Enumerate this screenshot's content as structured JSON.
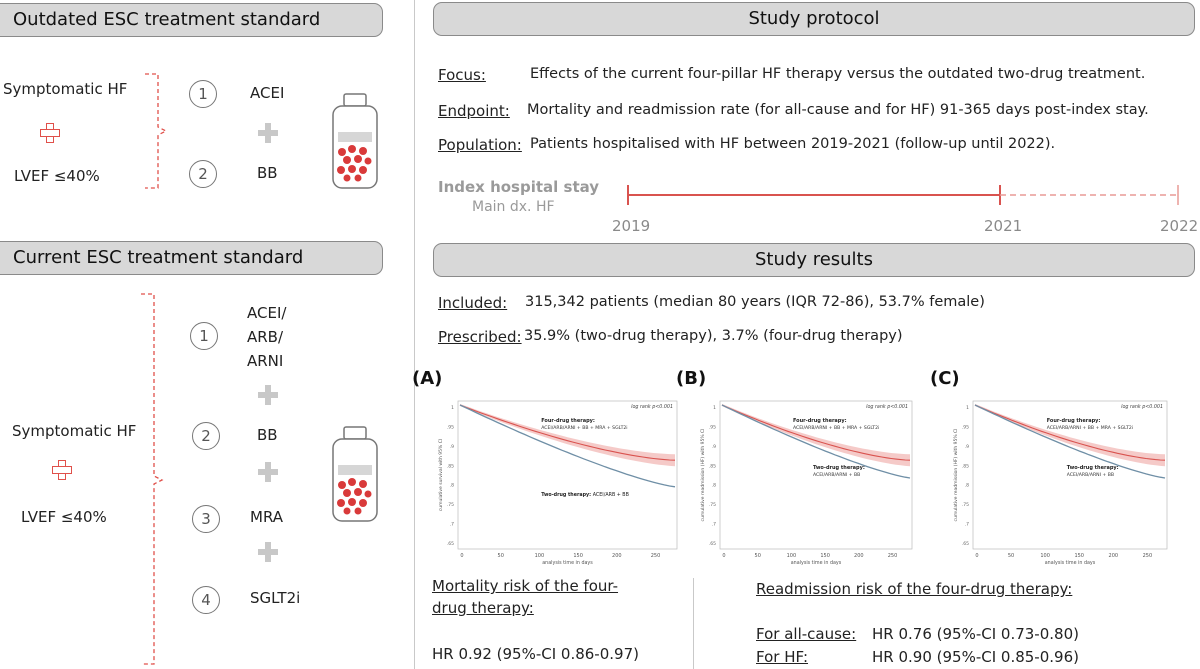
{
  "left": {
    "outdated_header": "Outdated ESC treatment standard",
    "outdated_cond1": "Symptomatic HF",
    "outdated_cond2": "LVEF ≤40%",
    "outdated_drugs": [
      {
        "num": "1",
        "name": "ACEI"
      },
      {
        "num": "2",
        "name": "BB"
      }
    ],
    "current_header": "Current ESC treatment standard",
    "current_cond1": "Symptomatic HF",
    "current_cond2": "LVEF ≤40%",
    "current_drugs": [
      {
        "num": "1",
        "name_lines": [
          "ACEI/",
          "ARB/",
          "ARNI"
        ]
      },
      {
        "num": "2",
        "name": "BB"
      },
      {
        "num": "3",
        "name": "MRA"
      },
      {
        "num": "4",
        "name": "SGLT2i"
      }
    ]
  },
  "protocol": {
    "header": "Study protocol",
    "focus_label": "Focus:",
    "focus_text": "Effects of the current four-pillar HF therapy versus the outdated two-drug treatment.",
    "endpoint_label": "Endpoint:",
    "endpoint_text": "Mortality and readmission rate (for all-cause and for HF) 91-365 days post-index stay.",
    "population_label": "Population:",
    "population_text": "Patients hospitalised with HF between 2019-2021 (follow-up until 2022).",
    "timeline_title": "Index hospital stay",
    "timeline_sub": "Main dx. HF",
    "years": [
      "2019",
      "2021",
      "2022"
    ]
  },
  "results": {
    "header": "Study results",
    "included_label": "Included:",
    "included_text": "315,342 patients (median 80 years (IQR 72-86), 53.7% female)",
    "prescribed_label": "Prescribed:",
    "prescribed_text": "35.9% (two-drug therapy), 3.7% (four-drug therapy)",
    "panels": [
      {
        "label": "(A)",
        "pval": "log rank p<0.001",
        "ylabel": "cumulative survival with 95% CI",
        "four_title": "Four-drug therapy:",
        "four_sub": "ACEI/ARB/ARNI + BB + MRA + SGLT2i",
        "two_title": "Two-drug therapy:",
        "two_sub": "ACEI/ARB + BB",
        "two_inline": true,
        "yticks": [
          "1",
          ".95",
          ".9",
          ".85",
          ".8",
          ".75",
          ".7",
          ".65"
        ],
        "xticks": [
          "0",
          "50",
          "100",
          "150",
          "200",
          "250"
        ],
        "xlabel": "analysis time in days"
      },
      {
        "label": "(B)",
        "pval": "log rank p<0.001",
        "ylabel": "cumulative readmission (HF) with 95% CI",
        "four_title": "Four-drug therapy:",
        "four_sub": "ACEI/ARB/ARNI + BB + MRA + SGLT2i",
        "two_title": "Two-drug therapy:",
        "two_sub": "ACEI/ARB/ARNI + BB",
        "two_inline": false,
        "yticks": [
          "1",
          ".95",
          ".9",
          ".85",
          ".8",
          ".75",
          ".7",
          ".65"
        ],
        "xticks": [
          "0",
          "50",
          "100",
          "150",
          "200",
          "250"
        ],
        "xlabel": "analysis time in days"
      },
      {
        "label": "(C)",
        "pval": "log rank p<0.001",
        "ylabel": "cumulative readmission (HF) with 95% CI",
        "four_title": "Four-drug therapy:",
        "four_sub": "ACEI/ARB/ARNI + BB + MRA + SGLT2i",
        "two_title": "Two-drug therapy:",
        "two_sub": "ACEI/ARB/ARNI + BB",
        "two_inline": false,
        "yticks": [
          "1",
          ".95",
          ".9",
          ".85",
          ".8",
          ".75",
          ".7",
          ".65"
        ],
        "xticks": [
          "0",
          "50",
          "100",
          "150",
          "200",
          "250"
        ],
        "xlabel": "analysis time in days"
      }
    ],
    "mortality_title1": "Mortality risk of the four-",
    "mortality_title2": "drug therapy:",
    "mortality_hr": "HR 0.92 (95%-CI 0.86-0.97)",
    "readmission_title": "Readmission risk of the four-drug therapy:",
    "allcause_label": "For all-cause:",
    "allcause_hr": "HR 0.76 (95%-CI 0.73-0.80)",
    "hf_label": "For HF:",
    "hf_hr": "HR 0.90 (95%-CI 0.85-0.96)"
  },
  "colors": {
    "red": "#d9534f",
    "blue": "#6f8fa6",
    "header_bg": "#d8d8d8",
    "plus": "#c8c8c8"
  }
}
